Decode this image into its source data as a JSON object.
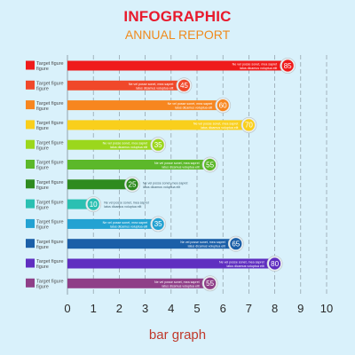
{
  "header": {
    "title": "INFOGRAPHIC",
    "subtitle": "ANNUAL REPORT"
  },
  "footer": {
    "label": "bar graph"
  },
  "chart_data": {
    "type": "bar",
    "orientation": "horizontal",
    "xlim": [
      0,
      10
    ],
    "x_ticks": [
      "0",
      "1",
      "2",
      "3",
      "4",
      "5",
      "6",
      "7",
      "8",
      "9",
      "10"
    ],
    "grid": "vertical dashed",
    "row_label_line1": "Target figure",
    "row_label_line2": "figure",
    "note_line1": "Ne vel posse sonet, mea sapret",
    "note_line2": "latus dicamus voluptua elit",
    "bars": [
      {
        "value": 8.5,
        "badge": "85",
        "color": "#ef1b1b"
      },
      {
        "value": 4.5,
        "badge": "45",
        "color": "#f0482a"
      },
      {
        "value": 6.0,
        "badge": "60",
        "color": "#f7861f"
      },
      {
        "value": 7.0,
        "badge": "70",
        "color": "#f9cf1c"
      },
      {
        "value": 3.5,
        "badge": "35",
        "color": "#9bd71c"
      },
      {
        "value": 5.5,
        "badge": "55",
        "color": "#5cb82a"
      },
      {
        "value": 2.5,
        "badge": "25",
        "color": "#2f8b1f"
      },
      {
        "value": 1.0,
        "badge": "10",
        "color": "#2bc0b2"
      },
      {
        "value": 3.5,
        "badge": "35",
        "color": "#23a2d2"
      },
      {
        "value": 6.5,
        "badge": "65",
        "color": "#1b5fa8"
      },
      {
        "value": 8.0,
        "badge": "80",
        "color": "#5f2ec0"
      },
      {
        "value": 5.5,
        "badge": "55",
        "color": "#8f3f88"
      }
    ]
  }
}
